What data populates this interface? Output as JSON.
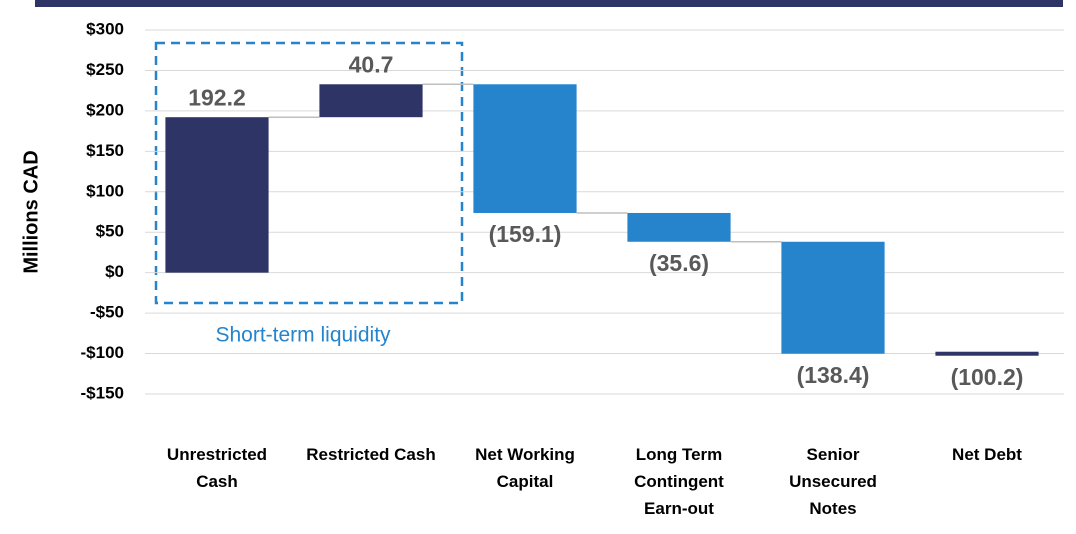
{
  "chart_data": {
    "type": "waterfall",
    "y_axis_label": "Millions CAD",
    "annotation": "Short-term liquidity",
    "categories": [
      "Unrestricted Cash",
      "Restricted Cash",
      "Net Working Capital",
      "Long Term Contingent Earn-out",
      "Senior Unsecured Notes",
      "Net Debt"
    ],
    "values": [
      192.2,
      40.7,
      -159.1,
      -35.6,
      -138.4,
      -100.2
    ],
    "value_labels": [
      "192.2",
      "40.7",
      "(159.1)",
      "(35.6)",
      "(138.4)",
      "(100.2)"
    ],
    "colors": [
      "#2e3566",
      "#2e3566",
      "#2584cc",
      "#2584cc",
      "#2584cc",
      "#2e3566"
    ],
    "ylim": [
      -150,
      300
    ],
    "yticks": [
      {
        "value": -150,
        "label": "-$150"
      },
      {
        "value": -100,
        "label": "-$100"
      },
      {
        "value": -50,
        "label": "-$50"
      },
      {
        "value": 0,
        "label": "$0"
      },
      {
        "value": 50,
        "label": "$50"
      },
      {
        "value": 100,
        "label": "$100"
      },
      {
        "value": 150,
        "label": "$150"
      },
      {
        "value": 200,
        "label": "$200"
      },
      {
        "value": 250,
        "label": "$250"
      },
      {
        "value": 300,
        "label": "$300"
      }
    ],
    "grid": true
  }
}
